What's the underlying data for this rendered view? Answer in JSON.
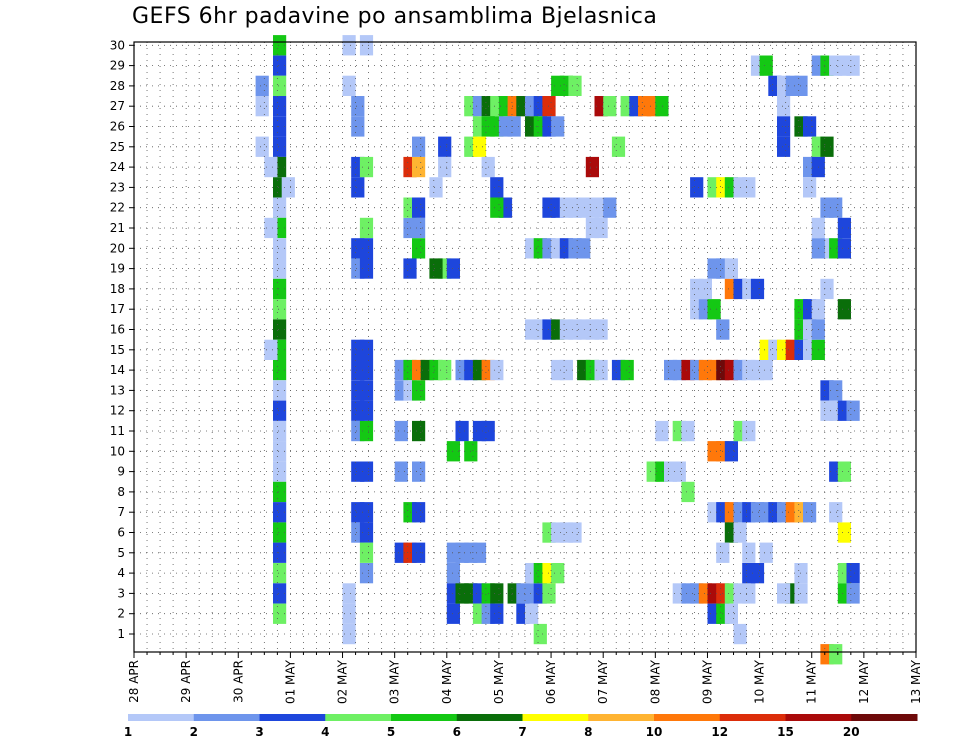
{
  "chart_data": {
    "type": "heatmap",
    "title": "GEFS 6hr padavine po ansamblima Bjelasnica",
    "y_ticks": [
      "1",
      "2",
      "3",
      "4",
      "5",
      "6",
      "7",
      "8",
      "9",
      "10",
      "11",
      "12",
      "13",
      "14",
      "15",
      "16",
      "17",
      "18",
      "19",
      "20",
      "21",
      "22",
      "23",
      "24",
      "25",
      "26",
      "27",
      "28",
      "29",
      "30"
    ],
    "x_ticks": [
      "28 APR",
      "29 APR",
      "30 APR",
      "01 MAY",
      "02 MAY",
      "03 MAY",
      "04 MAY",
      "05 MAY",
      "06 MAY",
      "07 MAY",
      "08 MAY",
      "09 MAY",
      "10 MAY",
      "11 MAY",
      "12 MAY",
      "13 MAY"
    ],
    "x_range": [
      "28 APR 00Z",
      "13 MAY 00Z"
    ],
    "x_step": "6hr",
    "ylim": [
      1,
      30
    ],
    "grid": true,
    "colorbar": {
      "levels": [
        "1",
        "2",
        "3",
        "4",
        "5",
        "6",
        "7",
        "8",
        "10",
        "12",
        "15",
        "20"
      ],
      "colors": [
        "#b4c8f8",
        "#6e95ec",
        "#1e46dc",
        "#6ef064",
        "#14c814",
        "#0a6e0a",
        "#ffff00",
        "#ffb432",
        "#ff780a",
        "#dc2d0a",
        "#aa0a0a",
        "#6e0a0a"
      ]
    },
    "cells": [
      [
        16,
        30,
        5
      ],
      [
        16,
        29,
        3
      ],
      [
        16,
        28,
        4
      ],
      [
        16,
        27,
        3
      ],
      [
        16,
        26,
        3
      ],
      [
        16,
        25,
        3
      ],
      [
        16,
        24,
        6
      ],
      [
        16,
        23,
        6
      ],
      [
        16,
        22,
        1
      ],
      [
        16,
        21,
        5
      ],
      [
        16,
        20,
        1
      ],
      [
        16,
        19,
        1
      ],
      [
        16,
        18,
        5
      ],
      [
        16,
        17,
        4
      ],
      [
        16,
        16,
        6
      ],
      [
        16,
        15,
        5
      ],
      [
        16,
        14,
        5
      ],
      [
        16,
        13,
        1
      ],
      [
        16,
        12,
        3
      ],
      [
        16,
        11,
        1
      ],
      [
        16,
        10,
        1
      ],
      [
        16,
        9,
        1
      ],
      [
        16,
        8,
        5
      ],
      [
        16,
        7,
        3
      ],
      [
        16,
        6,
        5
      ],
      [
        16,
        5,
        3
      ],
      [
        16,
        4,
        4
      ],
      [
        16,
        3,
        3
      ],
      [
        16,
        2,
        4
      ],
      [
        14,
        28,
        2
      ],
      [
        14,
        27,
        1
      ],
      [
        14,
        25,
        1
      ],
      [
        15,
        15,
        1
      ],
      [
        15,
        21,
        1
      ],
      [
        15,
        24,
        1
      ],
      [
        17,
        23,
        1
      ],
      [
        25,
        15,
        3
      ],
      [
        25,
        14,
        3
      ],
      [
        25,
        13,
        3
      ],
      [
        25,
        12,
        3
      ],
      [
        25,
        11,
        2
      ],
      [
        25,
        9,
        3
      ],
      [
        25,
        7,
        3
      ],
      [
        25,
        6,
        2
      ],
      [
        25,
        20,
        3
      ],
      [
        25,
        19,
        2
      ],
      [
        25,
        23,
        3
      ],
      [
        25,
        24,
        3
      ],
      [
        25,
        26,
        2
      ],
      [
        25,
        27,
        2
      ],
      [
        26,
        24,
        4
      ],
      [
        26,
        21,
        4
      ],
      [
        26,
        11,
        5
      ],
      [
        26,
        9,
        3
      ],
      [
        26,
        7,
        3
      ],
      [
        26,
        6,
        3
      ],
      [
        26,
        5,
        4
      ],
      [
        26,
        4,
        2
      ],
      [
        26,
        15,
        3
      ],
      [
        26,
        14,
        3
      ],
      [
        26,
        13,
        3
      ],
      [
        26,
        12,
        3
      ],
      [
        26,
        19,
        3
      ],
      [
        26,
        20,
        3
      ],
      [
        24,
        30,
        1
      ],
      [
        24,
        28,
        1
      ],
      [
        24,
        3,
        1
      ],
      [
        24,
        2,
        1
      ],
      [
        24,
        1,
        1
      ],
      [
        26,
        30,
        1
      ],
      [
        30,
        14,
        2
      ],
      [
        30,
        13,
        2
      ],
      [
        30,
        11,
        2
      ],
      [
        30,
        9,
        2
      ],
      [
        30,
        5,
        3
      ],
      [
        31,
        14,
        5
      ],
      [
        31,
        13,
        1
      ],
      [
        31,
        7,
        5
      ],
      [
        31,
        5,
        10
      ],
      [
        32,
        14,
        9
      ],
      [
        32,
        13,
        5
      ],
      [
        32,
        11,
        6
      ],
      [
        32,
        9,
        2
      ],
      [
        32,
        7,
        3
      ],
      [
        32,
        5,
        3
      ],
      [
        31,
        24,
        10
      ],
      [
        32,
        24,
        8
      ],
      [
        31,
        21,
        2
      ],
      [
        32,
        21,
        2
      ],
      [
        31,
        22,
        4
      ],
      [
        32,
        22,
        3
      ],
      [
        32,
        20,
        5
      ],
      [
        31,
        19,
        3
      ],
      [
        32,
        25,
        2
      ],
      [
        33,
        14,
        6
      ],
      [
        34,
        14,
        5
      ],
      [
        35,
        14,
        4
      ],
      [
        34,
        23,
        1
      ],
      [
        35,
        25,
        3
      ],
      [
        35,
        19,
        4
      ],
      [
        34,
        19,
        6
      ],
      [
        36,
        19,
        3
      ],
      [
        35,
        24,
        1
      ],
      [
        36,
        4,
        2
      ],
      [
        36,
        3,
        3
      ],
      [
        36,
        2,
        3
      ],
      [
        36,
        5,
        2
      ],
      [
        37,
        3,
        6
      ],
      [
        37,
        5,
        2
      ],
      [
        38,
        3,
        6
      ],
      [
        38,
        5,
        2
      ],
      [
        39,
        3,
        3
      ],
      [
        39,
        5,
        2
      ],
      [
        39,
        2,
        4
      ],
      [
        40,
        3,
        5
      ],
      [
        40,
        2,
        2
      ],
      [
        40,
        11,
        3
      ],
      [
        41,
        3,
        6
      ],
      [
        41,
        2,
        3
      ],
      [
        36,
        10,
        5
      ],
      [
        37,
        11,
        3
      ],
      [
        38,
        10,
        5
      ],
      [
        39,
        11,
        3
      ],
      [
        37,
        14,
        2
      ],
      [
        38,
        14,
        3
      ],
      [
        39,
        14,
        6
      ],
      [
        40,
        14,
        9
      ],
      [
        41,
        14,
        1
      ],
      [
        38,
        27,
        4
      ],
      [
        39,
        27,
        2
      ],
      [
        40,
        27,
        6
      ],
      [
        41,
        27,
        4
      ],
      [
        42,
        27,
        5
      ],
      [
        43,
        27,
        9
      ],
      [
        44,
        27,
        6
      ],
      [
        45,
        27,
        2
      ],
      [
        46,
        27,
        3
      ],
      [
        47,
        27,
        10
      ],
      [
        48,
        28,
        5
      ],
      [
        49,
        28,
        5
      ],
      [
        50,
        28,
        4
      ],
      [
        39,
        26,
        4
      ],
      [
        40,
        26,
        5
      ],
      [
        41,
        26,
        5
      ],
      [
        42,
        26,
        2
      ],
      [
        43,
        26,
        2
      ],
      [
        45,
        26,
        6
      ],
      [
        46,
        26,
        5
      ],
      [
        47,
        26,
        3
      ],
      [
        48,
        26,
        2
      ],
      [
        38,
        25,
        4
      ],
      [
        39,
        25,
        7
      ],
      [
        40,
        24,
        1
      ],
      [
        41,
        23,
        3
      ],
      [
        42,
        22,
        3
      ],
      [
        41,
        22,
        5
      ],
      [
        43,
        3,
        6
      ],
      [
        44,
        3,
        2
      ],
      [
        45,
        3,
        2
      ],
      [
        46,
        3,
        3
      ],
      [
        47,
        3,
        4
      ],
      [
        45,
        4,
        1
      ],
      [
        46,
        4,
        5
      ],
      [
        47,
        4,
        7
      ],
      [
        48,
        4,
        4
      ],
      [
        44,
        2,
        3
      ],
      [
        45,
        2,
        1
      ],
      [
        46,
        1,
        4
      ],
      [
        47,
        6,
        4
      ],
      [
        48,
        6,
        1
      ],
      [
        49,
        6,
        1
      ],
      [
        50,
        6,
        1
      ],
      [
        48,
        14,
        1
      ],
      [
        49,
        14,
        1
      ],
      [
        51,
        14,
        6
      ],
      [
        52,
        14,
        5
      ],
      [
        53,
        14,
        1
      ],
      [
        55,
        14,
        3
      ],
      [
        56,
        14,
        5
      ],
      [
        45,
        16,
        1
      ],
      [
        46,
        16,
        1
      ],
      [
        47,
        16,
        3
      ],
      [
        48,
        16,
        6
      ],
      [
        49,
        16,
        1
      ],
      [
        50,
        16,
        1
      ],
      [
        51,
        16,
        1
      ],
      [
        52,
        16,
        1
      ],
      [
        53,
        16,
        1
      ],
      [
        45,
        20,
        1
      ],
      [
        46,
        20,
        5
      ],
      [
        47,
        20,
        2
      ],
      [
        48,
        20,
        1
      ],
      [
        49,
        20,
        3
      ],
      [
        50,
        20,
        2
      ],
      [
        51,
        20,
        2
      ],
      [
        52,
        21,
        1
      ],
      [
        53,
        21,
        1
      ],
      [
        47,
        22,
        3
      ],
      [
        48,
        22,
        3
      ],
      [
        49,
        22,
        1
      ],
      [
        50,
        22,
        1
      ],
      [
        51,
        22,
        1
      ],
      [
        52,
        22,
        1
      ],
      [
        53,
        22,
        1
      ],
      [
        54,
        22,
        2
      ],
      [
        52,
        24,
        11
      ],
      [
        55,
        25,
        4
      ],
      [
        53,
        27,
        11
      ],
      [
        54,
        27,
        4
      ],
      [
        56,
        27,
        4
      ],
      [
        57,
        27,
        3
      ],
      [
        58,
        27,
        9
      ],
      [
        59,
        27,
        9
      ],
      [
        60,
        27,
        5
      ],
      [
        59,
        9,
        4
      ],
      [
        60,
        9,
        5
      ],
      [
        61,
        9,
        1
      ],
      [
        62,
        9,
        1
      ],
      [
        63,
        8,
        4
      ],
      [
        62,
        3,
        1
      ],
      [
        63,
        3,
        2
      ],
      [
        64,
        3,
        2
      ],
      [
        65,
        3,
        9
      ],
      [
        66,
        3,
        11
      ],
      [
        67,
        3,
        10
      ],
      [
        68,
        3,
        4
      ],
      [
        69,
        3,
        1
      ],
      [
        70,
        3,
        1
      ],
      [
        60,
        11,
        1
      ],
      [
        62,
        11,
        4
      ],
      [
        63,
        11,
        1
      ],
      [
        66,
        10,
        9
      ],
      [
        67,
        10,
        9
      ],
      [
        68,
        10,
        3
      ],
      [
        69,
        11,
        4
      ],
      [
        70,
        11,
        1
      ],
      [
        61,
        14,
        2
      ],
      [
        62,
        14,
        2
      ],
      [
        63,
        14,
        11
      ],
      [
        64,
        14,
        2
      ],
      [
        65,
        14,
        9
      ],
      [
        66,
        14,
        9
      ],
      [
        67,
        14,
        12
      ],
      [
        68,
        14,
        11
      ],
      [
        69,
        14,
        2
      ],
      [
        70,
        14,
        1
      ],
      [
        71,
        14,
        1
      ],
      [
        72,
        14,
        1
      ],
      [
        64,
        17,
        1
      ],
      [
        65,
        17,
        2
      ],
      [
        66,
        17,
        5
      ],
      [
        67,
        16,
        2
      ],
      [
        68,
        18,
        9
      ],
      [
        69,
        18,
        3
      ],
      [
        70,
        18,
        1
      ],
      [
        71,
        18,
        3
      ],
      [
        64,
        18,
        1
      ],
      [
        65,
        18,
        1
      ],
      [
        66,
        19,
        2
      ],
      [
        67,
        19,
        2
      ],
      [
        68,
        19,
        1
      ],
      [
        64,
        23,
        3
      ],
      [
        66,
        23,
        4
      ],
      [
        67,
        23,
        7
      ],
      [
        68,
        23,
        5
      ],
      [
        69,
        23,
        1
      ],
      [
        70,
        23,
        1
      ],
      [
        66,
        7,
        1
      ],
      [
        67,
        7,
        3
      ],
      [
        68,
        7,
        9
      ],
      [
        69,
        7,
        2
      ],
      [
        70,
        7,
        3
      ],
      [
        71,
        7,
        2
      ],
      [
        72,
        7,
        2
      ],
      [
        73,
        7,
        3
      ],
      [
        74,
        7,
        2
      ],
      [
        75,
        7,
        9
      ],
      [
        76,
        7,
        8
      ],
      [
        77,
        7,
        2
      ],
      [
        68,
        6,
        6
      ],
      [
        69,
        6,
        1
      ],
      [
        67,
        5,
        1
      ],
      [
        70,
        5,
        1
      ],
      [
        70,
        4,
        3
      ],
      [
        71,
        4,
        3
      ],
      [
        72,
        5,
        1
      ],
      [
        66,
        2,
        3
      ],
      [
        67,
        2,
        5
      ],
      [
        68,
        2,
        1
      ],
      [
        69,
        1,
        1
      ],
      [
        71,
        29,
        1
      ],
      [
        72,
        29,
        5
      ],
      [
        73,
        28,
        3
      ],
      [
        74,
        28,
        1
      ],
      [
        75,
        28,
        2
      ],
      [
        76,
        28,
        2
      ],
      [
        74,
        27,
        1
      ],
      [
        72,
        15,
        7
      ],
      [
        73,
        15,
        1
      ],
      [
        74,
        15,
        7
      ],
      [
        75,
        15,
        10
      ],
      [
        76,
        15,
        3
      ],
      [
        77,
        15,
        1
      ],
      [
        78,
        15,
        5
      ],
      [
        74,
        26,
        3
      ],
      [
        74,
        25,
        3
      ],
      [
        76,
        26,
        6
      ],
      [
        77,
        26,
        3
      ],
      [
        78,
        25,
        4
      ],
      [
        79,
        25,
        6
      ],
      [
        77,
        24,
        2
      ],
      [
        78,
        24,
        3
      ],
      [
        77,
        23,
        1
      ],
      [
        76,
        17,
        5
      ],
      [
        77,
        17,
        3
      ],
      [
        78,
        17,
        1
      ],
      [
        76,
        16,
        5
      ],
      [
        77,
        16,
        1
      ],
      [
        78,
        16,
        2
      ],
      [
        79,
        18,
        1
      ],
      [
        81,
        17,
        6
      ],
      [
        78,
        21,
        1
      ],
      [
        79,
        22,
        2
      ],
      [
        80,
        22,
        2
      ],
      [
        81,
        21,
        3
      ],
      [
        79,
        20,
        1
      ],
      [
        80,
        20,
        5
      ],
      [
        81,
        20,
        3
      ],
      [
        78,
        20,
        2
      ],
      [
        78,
        29,
        2
      ],
      [
        79,
        29,
        5
      ],
      [
        80,
        29,
        1
      ],
      [
        81,
        29,
        1
      ],
      [
        82,
        29,
        1
      ],
      [
        79,
        13,
        3
      ],
      [
        80,
        13,
        2
      ],
      [
        79,
        12,
        1
      ],
      [
        80,
        12,
        1
      ],
      [
        81,
        12,
        3
      ],
      [
        82,
        12,
        2
      ],
      [
        80,
        9,
        3
      ],
      [
        81,
        9,
        4
      ],
      [
        81,
        6,
        7
      ],
      [
        80,
        7,
        1
      ],
      [
        81,
        4,
        4
      ],
      [
        82,
        4,
        3
      ],
      [
        81,
        3,
        5
      ],
      [
        82,
        3,
        2
      ],
      [
        79,
        0,
        9
      ],
      [
        80,
        0,
        4
      ],
      [
        75,
        3,
        6
      ],
      [
        76,
        3,
        1
      ],
      [
        76,
        4,
        1
      ],
      [
        74,
        3,
        1
      ]
    ]
  }
}
